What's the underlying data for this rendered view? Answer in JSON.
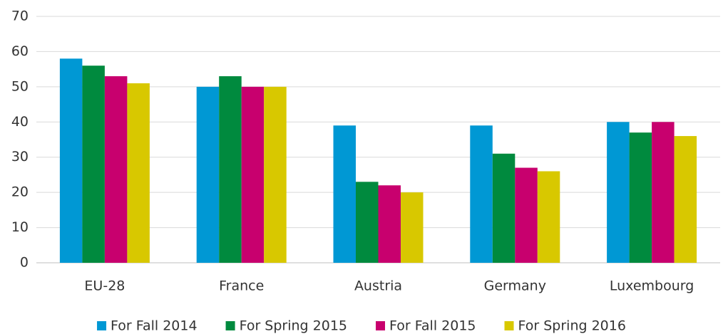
{
  "chart_data": {
    "type": "bar",
    "categories": [
      "EU-28",
      "France",
      "Austria",
      "Germany",
      "Luxembourg"
    ],
    "series": [
      {
        "name": "For Fall 2014",
        "color": "#0098d4",
        "values": [
          58,
          50,
          39,
          39,
          40
        ]
      },
      {
        "name": "For Spring 2015",
        "color": "#008a3e",
        "values": [
          56,
          53,
          23,
          31,
          37
        ]
      },
      {
        "name": "For Fall 2015",
        "color": "#c8006e",
        "values": [
          53,
          50,
          22,
          27,
          40
        ]
      },
      {
        "name": "For Spring 2016",
        "color": "#d8c800",
        "values": [
          51,
          50,
          20,
          26,
          36
        ]
      }
    ],
    "ylim": [
      0,
      70
    ],
    "yticks": [
      0,
      10,
      20,
      30,
      40,
      50,
      60,
      70
    ],
    "grid": true,
    "legend": "bottom"
  }
}
